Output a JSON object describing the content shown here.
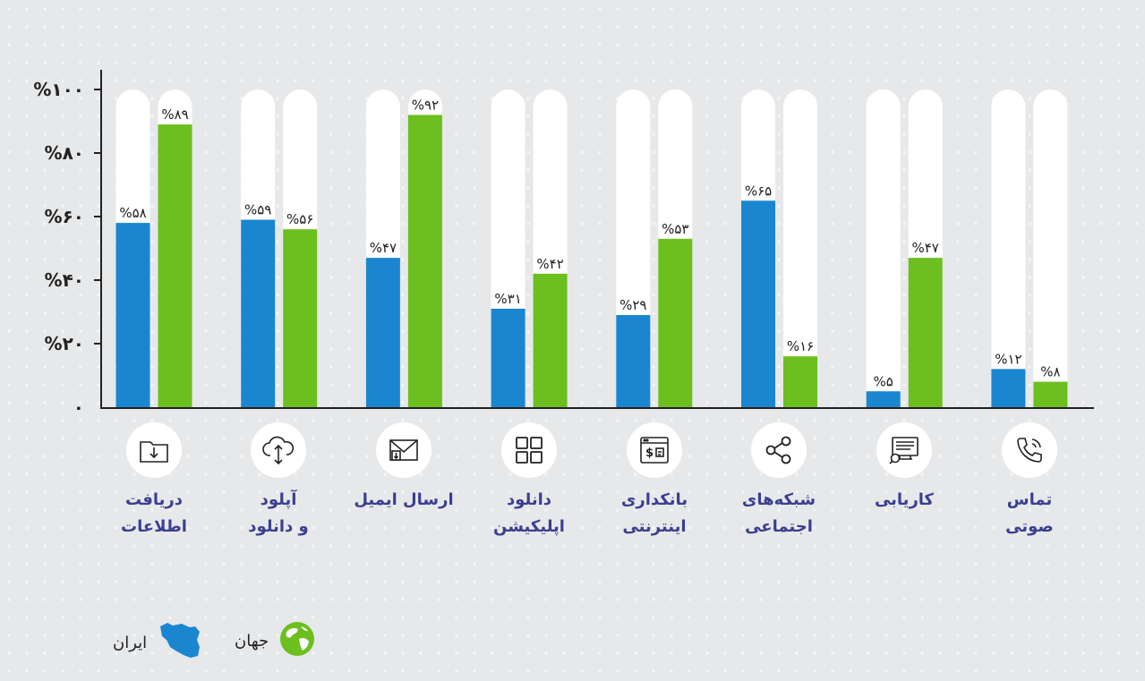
{
  "chart_data": {
    "type": "bar",
    "ylim": [
      0,
      100
    ],
    "yticks": [
      "٠",
      "%۲۰",
      "%۴۰",
      "%۶۰",
      "%۸۰",
      "%۱۰۰"
    ],
    "tick_values": [
      0,
      20,
      40,
      60,
      80,
      100
    ],
    "categories": [
      "دریافت\nاطلاعات",
      "آپلود\nو دانلود",
      "ارسال ایمیل",
      "دانلود\nاپلیکیشن",
      "بانکداری\nاینترنتی",
      "شبکه‌های\nاجتماعی",
      "کاریابی",
      "تماس\nصوتی"
    ],
    "icons": [
      "folder-download-icon",
      "cloud-upload-icon",
      "email-icon",
      "grid-apps-icon",
      "online-banking-icon",
      "share-icon",
      "job-search-icon",
      "phone-call-icon"
    ],
    "series": [
      {
        "name": "ایران",
        "color": "#1a86d0",
        "values": [
          58,
          59,
          47,
          31,
          29,
          65,
          5,
          12
        ],
        "labels": [
          "%۵۸",
          "%۵۹",
          "%۴۷",
          "%۳۱",
          "%۲۹",
          "%۶۵",
          "%۵",
          "%۱۲"
        ]
      },
      {
        "name": "جهان",
        "color": "#6cbf1f",
        "values": [
          89,
          56,
          92,
          42,
          53,
          16,
          47,
          8
        ],
        "labels": [
          "%۸۹",
          "%۵۶",
          "%۹۲",
          "%۴۲",
          "%۵۳",
          "%۱۶",
          "%۴۷",
          "%۸"
        ]
      }
    ],
    "track_color": "#ffffff",
    "grid": false,
    "legend_position": "bottom-left"
  },
  "legend": {
    "world_label": "جهان",
    "iran_label": "ایران",
    "world_icon": "globe-icon",
    "iran_icon": "iran-map-icon"
  }
}
